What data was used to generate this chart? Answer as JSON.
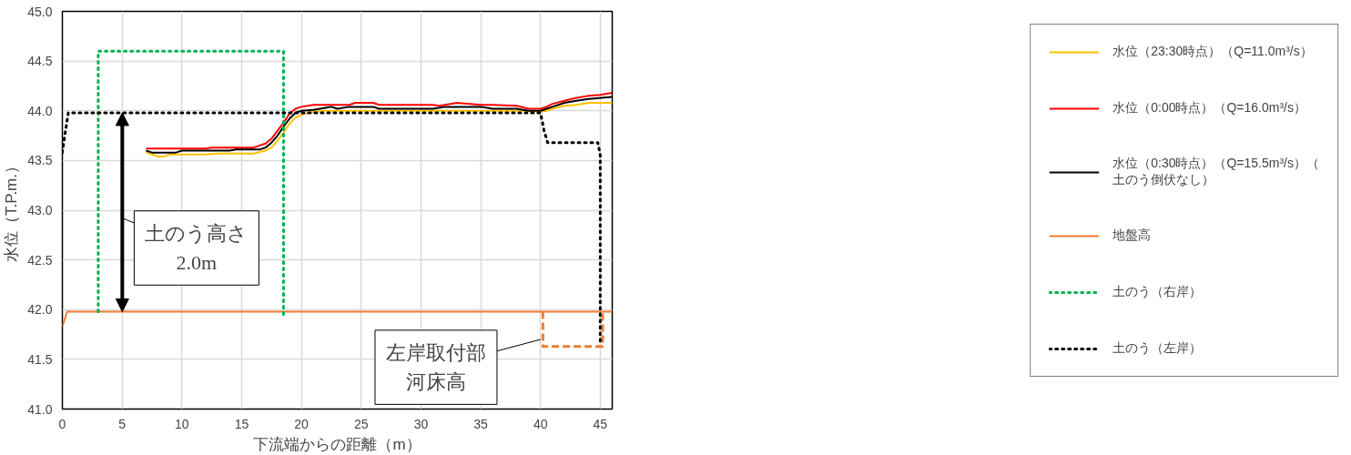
{
  "chart_data": {
    "type": "line",
    "xlabel": "下流端からの距離（m）",
    "ylabel": "水位（T.P.m.）",
    "xlim": [
      0,
      46
    ],
    "xticks": [
      0,
      5,
      10,
      15,
      20,
      25,
      30,
      35,
      40,
      45
    ],
    "ylim": [
      41,
      45
    ],
    "yticks": [
      {
        "value": 41,
        "label": "41.0"
      },
      {
        "value": 41.5,
        "label": "41.5"
      },
      {
        "value": 42,
        "label": "42.0"
      },
      {
        "value": 42.5,
        "label": "42.5"
      },
      {
        "value": 43,
        "label": "43.0"
      },
      {
        "value": 43.5,
        "label": "43.5"
      },
      {
        "value": 44,
        "label": "44.0"
      },
      {
        "value": 44.5,
        "label": "44.5"
      },
      {
        "value": 45,
        "label": "45.0"
      }
    ],
    "grid": true,
    "legend": "right",
    "marker": "none",
    "series": [
      {
        "name": "水位（23:30時点）（Q=11.0m³/s）",
        "color": "#ffc000",
        "line_style": "solid",
        "x": [
          7,
          7.5,
          8,
          8.5,
          9,
          12,
          13,
          16,
          17,
          17.5,
          18,
          18.5,
          19,
          19.5,
          20,
          21,
          22,
          39,
          40,
          40.5,
          41,
          42,
          43,
          44,
          46
        ],
        "values": [
          43.58,
          43.56,
          43.54,
          43.54,
          43.56,
          43.56,
          43.57,
          43.57,
          43.6,
          43.63,
          43.7,
          43.78,
          43.87,
          43.93,
          43.96,
          43.99,
          44.0,
          44.0,
          43.99,
          44.0,
          44.02,
          44.05,
          44.06,
          44.08,
          44.08
        ]
      },
      {
        "name": "水位（0:00時点）（Q=16.0m³/s）",
        "color": "#ff0000",
        "line_style": "solid",
        "x": [
          7,
          12,
          12.5,
          16,
          17,
          17.5,
          18,
          18.5,
          19,
          19.5,
          20,
          21,
          24,
          24.5,
          26,
          26.5,
          31,
          31.5,
          32,
          33,
          35,
          36,
          38,
          39,
          40,
          40.5,
          41,
          42,
          43,
          44,
          45,
          46
        ],
        "values": [
          43.62,
          43.62,
          43.63,
          43.63,
          43.67,
          43.72,
          43.8,
          43.88,
          43.97,
          44.02,
          44.04,
          44.06,
          44.06,
          44.08,
          44.08,
          44.06,
          44.06,
          44.05,
          44.06,
          44.08,
          44.06,
          44.06,
          44.05,
          44.02,
          44.02,
          44.04,
          44.07,
          44.1,
          44.13,
          44.15,
          44.16,
          44.18
        ]
      },
      {
        "name": "水位（0:30時点）（Q=15.5m³/s）（土のう倒伏なし）",
        "color": "#000000",
        "line_style": "solid",
        "x": [
          7,
          7.5,
          9.5,
          10,
          14,
          14.5,
          16.5,
          17,
          17.5,
          18,
          18.5,
          19,
          19.5,
          20,
          21,
          22,
          22.5,
          23,
          24,
          26,
          26.5,
          31,
          32,
          35,
          36,
          38,
          39,
          40,
          41,
          42,
          43,
          44,
          46
        ],
        "values": [
          43.6,
          43.58,
          43.58,
          43.6,
          43.6,
          43.61,
          43.61,
          43.63,
          43.68,
          43.75,
          43.84,
          43.92,
          43.98,
          44.0,
          44.01,
          44.03,
          44.04,
          44.02,
          44.04,
          44.04,
          44.02,
          44.02,
          44.04,
          44.04,
          44.02,
          44.02,
          44.0,
          44.0,
          44.04,
          44.08,
          44.1,
          44.12,
          44.14
        ]
      },
      {
        "name": "地盤高",
        "color": "#ed7d31",
        "line_style": "solid",
        "x": [
          0,
          0.4,
          46
        ],
        "values": [
          41.83,
          41.98,
          41.98
        ]
      },
      {
        "color": "#ed7d31",
        "line_style": "dashed",
        "x": [
          40.2,
          40.2,
          45.2,
          45.2
        ],
        "values": [
          41.98,
          41.63,
          41.63,
          41.98
        ]
      },
      {
        "name": "土のう（右岸）",
        "color": "#00b050",
        "line_style": "dotted",
        "x": [
          3,
          3,
          18.5,
          18.5
        ],
        "values": [
          41.98,
          44.6,
          44.6,
          41.95
        ]
      },
      {
        "name": "土のう（左岸）",
        "color": "#000000",
        "line_style": "dotted",
        "x": [
          0,
          0.2,
          0.5,
          40,
          40.3,
          40.6,
          44.8,
          45,
          45
        ],
        "values": [
          43.58,
          43.75,
          43.98,
          43.98,
          43.8,
          43.68,
          43.68,
          43.55,
          41.65
        ]
      }
    ],
    "annotations": [
      "土のう高さ2.0m",
      {
        "text": "左岸取付部河床高",
        "x": 40,
        "y": 41.7
      }
    ]
  }
}
